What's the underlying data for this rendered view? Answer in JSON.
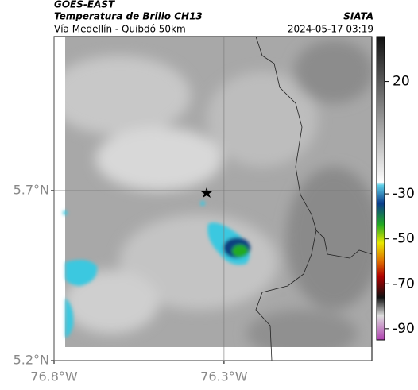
{
  "header": {
    "title": "GOES-EAST",
    "subtitle": "Temperatura de Brillo CH13",
    "route": "Vía Medellín - Quibdó 50km",
    "source": "SIATA",
    "datetime": "2024-05-17 03:19"
  },
  "map": {
    "latlim": [
      5.2,
      6.153
    ],
    "lonlim": [
      -76.8,
      -75.865
    ],
    "lat_ticks": [
      {
        "value": 5.7,
        "label": "5.7°N"
      },
      {
        "value": 5.2,
        "label": "5.2°N"
      }
    ],
    "lon_ticks": [
      {
        "value": -76.8,
        "label": "76.8°W"
      },
      {
        "value": -76.3,
        "label": "76.3°W"
      }
    ],
    "grid": true
  },
  "colorbar": {
    "lim": [
      40,
      -95
    ],
    "ticks": [
      20,
      -30,
      -50,
      -70,
      -90
    ]
  }
}
